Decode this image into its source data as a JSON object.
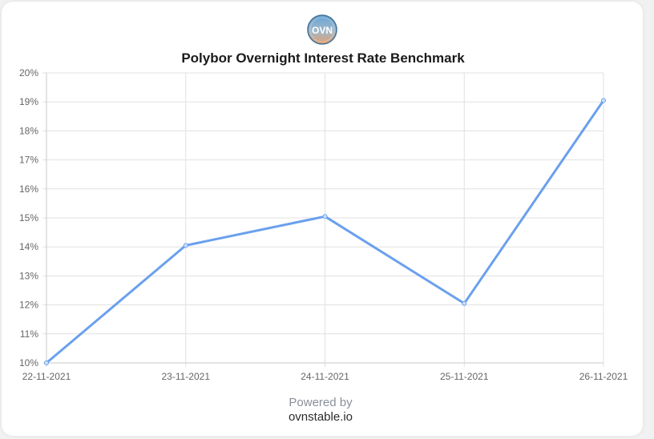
{
  "logo": {
    "text": "OVN",
    "icon": "ovn-logo-icon",
    "colors": {
      "top": "#6aa5d4",
      "bottom": "#e3a06f",
      "ring": "#3f6f97"
    }
  },
  "footer": {
    "powered_by": "Powered by",
    "site": "ovnstable.io"
  },
  "chart_data": {
    "type": "line",
    "title": "Polybor Overnight Interest Rate Benchmark",
    "xlabel": "",
    "ylabel": "",
    "categories": [
      "22-11-2021",
      "23-11-2021",
      "24-11-2021",
      "25-11-2021",
      "26-11-2021"
    ],
    "series": [
      {
        "values": [
          10.0,
          14.05,
          15.05,
          12.05,
          19.05
        ],
        "color": "#6aa0ee"
      }
    ],
    "ylim": [
      10,
      20
    ],
    "ytick_step": 1,
    "ytick_suffix": "%",
    "grid": true,
    "legend": "none"
  }
}
